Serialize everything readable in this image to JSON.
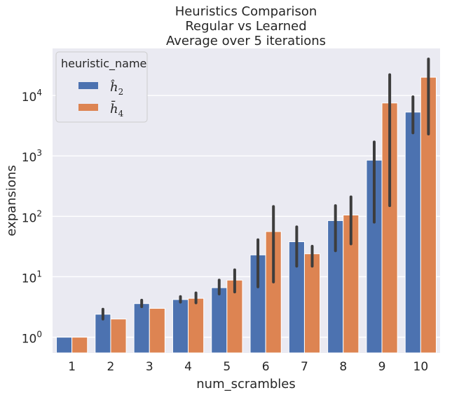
{
  "chart_data": {
    "type": "bar",
    "title_lines": [
      "Heuristics Comparison",
      "Regular vs Learned",
      "Average over 5 iterations"
    ],
    "xlabel": "num_scrambles",
    "ylabel": "expansions",
    "yscale": "log",
    "ylim": [
      0.55,
      60000
    ],
    "ytick_base": "10",
    "yticks": [
      {
        "value": 1,
        "exp": "0"
      },
      {
        "value": 10,
        "exp": "1"
      },
      {
        "value": 100,
        "exp": "2"
      },
      {
        "value": 1000,
        "exp": "3"
      },
      {
        "value": 10000,
        "exp": "4"
      }
    ],
    "categories": [
      "1",
      "2",
      "3",
      "4",
      "5",
      "6",
      "7",
      "8",
      "9",
      "10"
    ],
    "grid": true,
    "background": "#EAEAF2",
    "legend": {
      "title": "heuristic_name",
      "placement": "top-left",
      "entries": [
        {
          "glyph": "ĥ",
          "sub": "2"
        },
        {
          "glyph": "h̄",
          "sub": "4"
        }
      ]
    },
    "series": [
      {
        "color": "#4C72B0",
        "values": [
          1,
          2.4,
          3.6,
          4.2,
          6.6,
          23,
          38,
          85,
          850,
          5300
        ],
        "err_low": [
          1,
          2.0,
          3.2,
          3.8,
          5.2,
          6.8,
          15,
          27,
          80,
          2400
        ],
        "err_high": [
          1,
          2.9,
          4.1,
          4.7,
          8.8,
          41,
          67,
          150,
          1700,
          9500
        ]
      },
      {
        "color": "#DD8452",
        "values": [
          1,
          2.0,
          3.0,
          4.4,
          8.8,
          56,
          24,
          105,
          7500,
          20000
        ],
        "err_low": [
          1,
          2.0,
          3.0,
          3.7,
          5.6,
          8.2,
          15,
          35,
          150,
          2300
        ],
        "err_high": [
          1,
          2.0,
          3.0,
          5.4,
          13,
          145,
          32,
          210,
          22000,
          40000
        ]
      }
    ]
  }
}
